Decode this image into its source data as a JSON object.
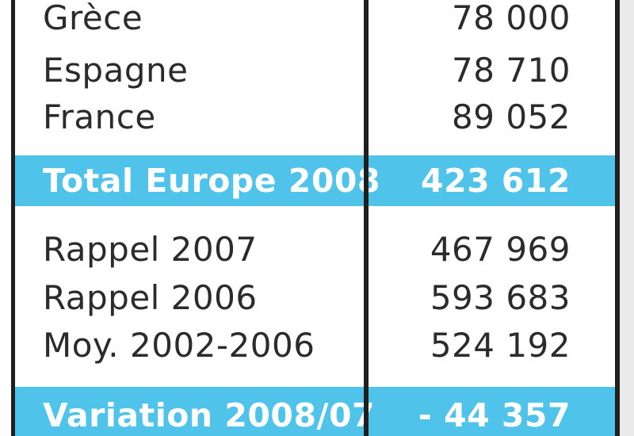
{
  "rows": [
    {
      "label": "Grèce",
      "value": "78 000"
    },
    {
      "label": "Espagne",
      "value": "78 710"
    },
    {
      "label": "France",
      "value": "89 052"
    }
  ],
  "total": {
    "label": "Total Europe 2008",
    "value": "423 612"
  },
  "history": [
    {
      "label": "Rappel 2007",
      "value": "467 969"
    },
    {
      "label": "Rappel 2006",
      "value": "593 683"
    },
    {
      "label": "Moy. 2002-2006",
      "value": "524 192"
    }
  ],
  "variation": {
    "label": "Variation 2008/07",
    "value": "- 44 357"
  },
  "colors": {
    "highlight": "#4fc3ea",
    "frame": "#1f1f1f",
    "text": "#2b2b2b"
  }
}
